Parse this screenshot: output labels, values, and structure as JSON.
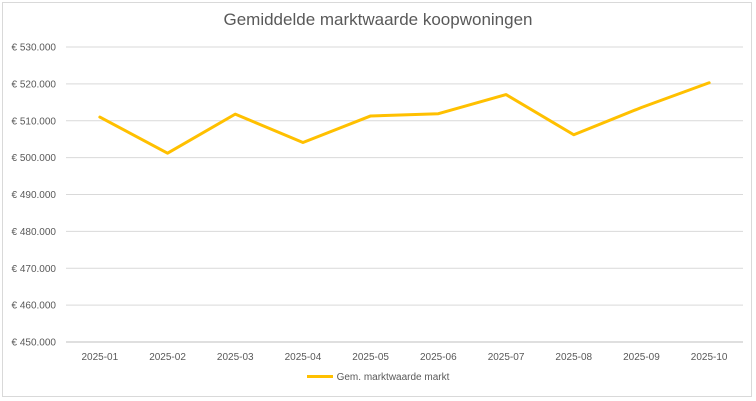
{
  "chart_data": {
    "type": "line",
    "title": "Gemiddelde marktwaarde koopwoningen",
    "categories": [
      "2025-01",
      "2025-02",
      "2025-03",
      "2025-04",
      "2025-05",
      "2025-06",
      "2025-07",
      "2025-08",
      "2025-09",
      "2025-10"
    ],
    "series": [
      {
        "name": "Gem. marktwaarde markt",
        "color": "#ffc000",
        "values": [
          511000,
          501200,
          511800,
          504100,
          511300,
          511900,
          517100,
          506200,
          513600,
          520300
        ]
      }
    ],
    "ylim": [
      450000,
      530000
    ],
    "yticks": [
      450000,
      460000,
      470000,
      480000,
      490000,
      500000,
      510000,
      520000,
      530000
    ],
    "ytick_labels": [
      "€ 450.000",
      "€ 460.000",
      "€ 470.000",
      "€ 480.000",
      "€ 490.000",
      "€ 500.000",
      "€ 510.000",
      "€ 520.000",
      "€ 530.000"
    ],
    "grid": true,
    "legend_position": "bottom"
  }
}
